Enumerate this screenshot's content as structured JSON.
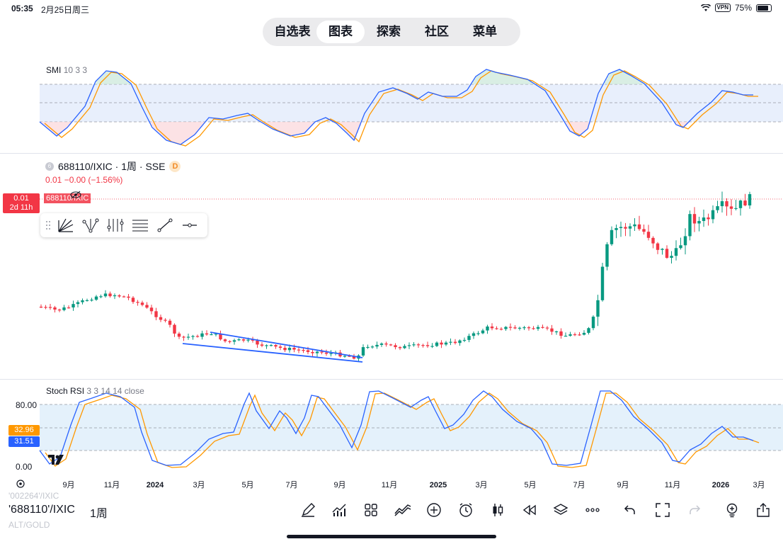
{
  "status_bar": {
    "time": "05:35",
    "date": "2月25日周三",
    "vpn": "VPN",
    "battery": "75%"
  },
  "nav_tabs": [
    {
      "label": "自选表",
      "active": false
    },
    {
      "label": "图表",
      "active": true
    },
    {
      "label": "探索",
      "active": false
    },
    {
      "label": "社区",
      "active": false
    },
    {
      "label": "菜单",
      "active": false
    }
  ],
  "smi_pane": {
    "name": "SMI",
    "params": "10 3 3"
  },
  "main_pane": {
    "symbol": "688110/IXIC · 1周 · SSE",
    "logo": "6",
    "badge": "D",
    "change_line": "0.01 −0.00 (−1.56%)",
    "price_tag": {
      "value": "0.01",
      "countdown": "2d 11h"
    },
    "ghost_symbol": "688110/IXIC"
  },
  "drawing_tools": [
    "trend-channel-tool",
    "pitchfork-tool",
    "fib-tool",
    "parallel-lines-tool",
    "trend-line-tool",
    "horizontal-ray-tool"
  ],
  "stoch_pane": {
    "name": "Stoch RSI",
    "params": "3 3 14 14 close",
    "axis": {
      "top": "80.00",
      "bottom": "0.00"
    },
    "tag_k": "32.96",
    "tag_d": "31.51"
  },
  "time_axis": {
    "labels": [
      {
        "t": "9月",
        "bold": false
      },
      {
        "t": "11月",
        "bold": false
      },
      {
        "t": "2024",
        "bold": true
      },
      {
        "t": "3月",
        "bold": false
      },
      {
        "t": "5月",
        "bold": false
      },
      {
        "t": "7月",
        "bold": false
      },
      {
        "t": "9月",
        "bold": false
      },
      {
        "t": "11月",
        "bold": false
      },
      {
        "t": "2025",
        "bold": true
      },
      {
        "t": "3月",
        "bold": false
      },
      {
        "t": "5月",
        "bold": false
      },
      {
        "t": "7月",
        "bold": false
      },
      {
        "t": "9月",
        "bold": false
      },
      {
        "t": "11月",
        "bold": false
      },
      {
        "t": "2026",
        "bold": true
      },
      {
        "t": "3月",
        "bold": false
      }
    ]
  },
  "bottom_toolbar": {
    "symbol": "'688110'/IXIC",
    "interval": "1周",
    "ghost_top": "'002264'/IXIC",
    "ghost_bottom": "ALT/GOLD",
    "icons": [
      "pen-icon",
      "indicators-icon",
      "layouts-icon",
      "compare-icon",
      "add-icon",
      "alert-icon",
      "candles-icon",
      "replay-icon",
      "layers-icon",
      "more-icon",
      "undo-icon",
      "fullscreen-icon",
      "redo-icon",
      "bulb-icon",
      "share-icon"
    ]
  },
  "colors": {
    "up": "#089981",
    "down": "#f23645",
    "line_blue": "#2962ff",
    "line_orange": "#ff9800",
    "band": "#e3ecfb"
  }
}
